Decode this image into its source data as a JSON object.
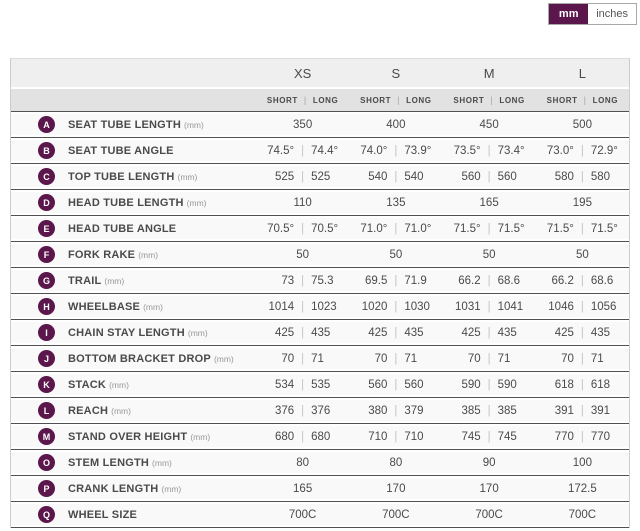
{
  "unit_toggle": {
    "selected": "mm",
    "options": [
      {
        "label": "mm"
      },
      {
        "label": "inches"
      }
    ]
  },
  "colors": {
    "accent_purple": "#5b164b",
    "size_header_bg": "#efefef",
    "sub_header_bg": "#e2e2e2",
    "row_bg": "#f9f9f9",
    "row_separator": "#515151",
    "text_dark": "#4a4a4a",
    "unit_text": "#979797",
    "value_divider": "#c4c4c4"
  },
  "table": {
    "sizes": [
      "XS",
      "S",
      "M",
      "L"
    ],
    "variant_labels": [
      "SHORT",
      "LONG"
    ],
    "divider": "|",
    "rows": [
      {
        "letter": "A",
        "label": "SEAT TUBE LENGTH",
        "unit": "(mm)",
        "values": [
          [
            "350"
          ],
          [
            "400"
          ],
          [
            "450"
          ],
          [
            "500"
          ]
        ]
      },
      {
        "letter": "B",
        "label": "SEAT TUBE ANGLE",
        "unit": "",
        "values": [
          [
            "74.5°",
            "74.4°"
          ],
          [
            "74.0°",
            "73.9°"
          ],
          [
            "73.5°",
            "73.4°"
          ],
          [
            "73.0°",
            "72.9°"
          ]
        ]
      },
      {
        "letter": "C",
        "label": "TOP TUBE LENGTH",
        "unit": "(mm)",
        "values": [
          [
            "525",
            "525"
          ],
          [
            "540",
            "540"
          ],
          [
            "560",
            "560"
          ],
          [
            "580",
            "580"
          ]
        ]
      },
      {
        "letter": "D",
        "label": "HEAD TUBE LENGTH",
        "unit": "(mm)",
        "values": [
          [
            "110"
          ],
          [
            "135"
          ],
          [
            "165"
          ],
          [
            "195"
          ]
        ]
      },
      {
        "letter": "E",
        "label": "HEAD TUBE ANGLE",
        "unit": "",
        "values": [
          [
            "70.5°",
            "70.5°"
          ],
          [
            "71.0°",
            "71.0°"
          ],
          [
            "71.5°",
            "71.5°"
          ],
          [
            "71.5°",
            "71.5°"
          ]
        ]
      },
      {
        "letter": "F",
        "label": "FORK RAKE",
        "unit": "(mm)",
        "values": [
          [
            "50"
          ],
          [
            "50"
          ],
          [
            "50"
          ],
          [
            "50"
          ]
        ]
      },
      {
        "letter": "G",
        "label": "TRAIL",
        "unit": "(mm)",
        "values": [
          [
            "73",
            "75.3"
          ],
          [
            "69.5",
            "71.9"
          ],
          [
            "66.2",
            "68.6"
          ],
          [
            "66.2",
            "68.6"
          ]
        ]
      },
      {
        "letter": "H",
        "label": "WHEELBASE",
        "unit": "(mm)",
        "values": [
          [
            "1014",
            "1023"
          ],
          [
            "1020",
            "1030"
          ],
          [
            "1031",
            "1041"
          ],
          [
            "1046",
            "1056"
          ]
        ]
      },
      {
        "letter": "I",
        "label": "CHAIN STAY LENGTH",
        "unit": "(mm)",
        "values": [
          [
            "425",
            "435"
          ],
          [
            "425",
            "435"
          ],
          [
            "425",
            "435"
          ],
          [
            "425",
            "435"
          ]
        ]
      },
      {
        "letter": "J",
        "label": "BOTTOM BRACKET DROP",
        "unit": "(mm)",
        "values": [
          [
            "70",
            "71"
          ],
          [
            "70",
            "71"
          ],
          [
            "70",
            "71"
          ],
          [
            "70",
            "71"
          ]
        ]
      },
      {
        "letter": "K",
        "label": "STACK",
        "unit": "(mm)",
        "values": [
          [
            "534",
            "535"
          ],
          [
            "560",
            "560"
          ],
          [
            "590",
            "590"
          ],
          [
            "618",
            "618"
          ]
        ]
      },
      {
        "letter": "L",
        "label": "REACH",
        "unit": "(mm)",
        "values": [
          [
            "376",
            "376"
          ],
          [
            "380",
            "379"
          ],
          [
            "385",
            "385"
          ],
          [
            "391",
            "391"
          ]
        ]
      },
      {
        "letter": "M",
        "label": "STAND OVER HEIGHT",
        "unit": "(mm)",
        "values": [
          [
            "680",
            "680"
          ],
          [
            "710",
            "710"
          ],
          [
            "745",
            "745"
          ],
          [
            "770",
            "770"
          ]
        ]
      },
      {
        "letter": "O",
        "label": "STEM LENGTH",
        "unit": "(mm)",
        "values": [
          [
            "80"
          ],
          [
            "80"
          ],
          [
            "90"
          ],
          [
            "100"
          ]
        ]
      },
      {
        "letter": "P",
        "label": "CRANK LENGTH",
        "unit": "(mm)",
        "values": [
          [
            "165"
          ],
          [
            "170"
          ],
          [
            "170"
          ],
          [
            "172.5"
          ]
        ]
      },
      {
        "letter": "Q",
        "label": "WHEEL SIZE",
        "unit": "",
        "values": [
          [
            "700C"
          ],
          [
            "700C"
          ],
          [
            "700C"
          ],
          [
            "700C"
          ]
        ]
      }
    ]
  }
}
